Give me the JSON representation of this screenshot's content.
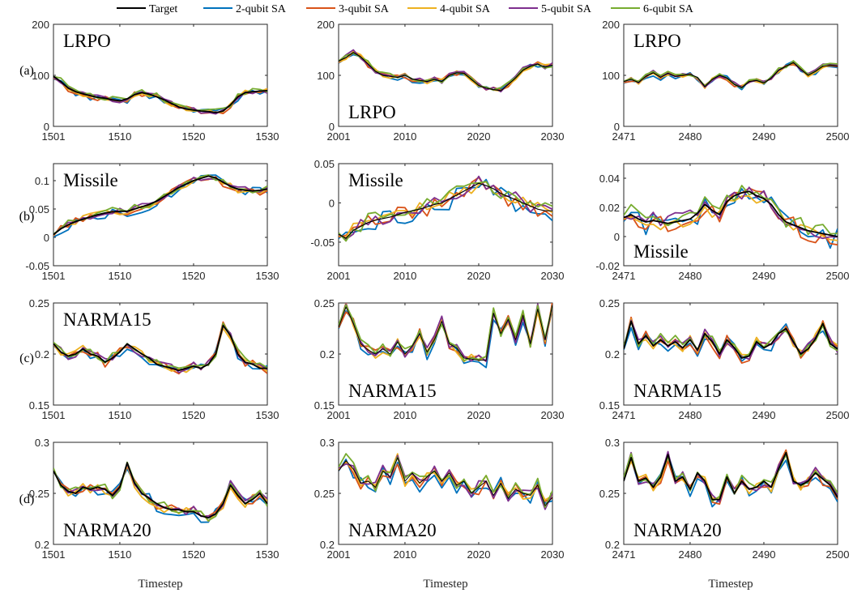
{
  "legend": [
    {
      "label": "Target",
      "color": "#000000"
    },
    {
      "label": "2-qubit SA",
      "color": "#0072BD"
    },
    {
      "label": "3-qubit SA",
      "color": "#D95319"
    },
    {
      "label": "4-qubit SA",
      "color": "#EDB120"
    },
    {
      "label": "5-qubit SA",
      "color": "#7E2F8E"
    },
    {
      "label": "6-qubit SA",
      "color": "#77AC30"
    }
  ],
  "row_labels": [
    "(a)",
    "(b)",
    "(c)",
    "(d)"
  ],
  "xlabel": "Timestep",
  "chart_data": [
    {
      "type": "line",
      "row": 0,
      "col": 0,
      "label": "LRPO",
      "label_pos": "top",
      "x_start": 1501,
      "xlim": [
        1501,
        1530
      ],
      "xticks": [
        1501,
        1510,
        1520,
        1530
      ],
      "ylim": [
        0,
        200
      ],
      "yticks": [
        0,
        100,
        200
      ],
      "ytick_labels": [
        "0",
        "100",
        "200"
      ],
      "target_lw": 1.8,
      "target": [
        98,
        88,
        75,
        68,
        64,
        60,
        57,
        55,
        52,
        50,
        54,
        62,
        66,
        63,
        58,
        52,
        45,
        38,
        34,
        32,
        30,
        29,
        27,
        30,
        42,
        58,
        66,
        68,
        69,
        70
      ],
      "noise": 7
    },
    {
      "type": "line",
      "row": 0,
      "col": 1,
      "label": "LRPO",
      "label_pos": "bottom",
      "x_start": 2001,
      "xlim": [
        2001,
        2030
      ],
      "xticks": [
        2001,
        2010,
        2020,
        2030
      ],
      "ylim": [
        0,
        200
      ],
      "yticks": [
        0,
        100,
        200
      ],
      "ytick_labels": [
        "0",
        "100",
        "200"
      ],
      "target_lw": 1.2,
      "target": [
        128,
        135,
        145,
        136,
        122,
        108,
        100,
        98,
        96,
        100,
        93,
        90,
        88,
        92,
        88,
        100,
        105,
        104,
        92,
        80,
        75,
        72,
        70,
        82,
        95,
        110,
        118,
        122,
        116,
        120
      ],
      "noise": 6
    },
    {
      "type": "line",
      "row": 0,
      "col": 2,
      "label": "LRPO",
      "label_pos": "top",
      "x_start": 2471,
      "xlim": [
        2471,
        2500
      ],
      "xticks": [
        2471,
        2480,
        2490,
        2500
      ],
      "ylim": [
        0,
        200
      ],
      "yticks": [
        0,
        100,
        200
      ],
      "ytick_labels": [
        "0",
        "100",
        "200"
      ],
      "target_lw": 1.2,
      "target": [
        88,
        92,
        86,
        98,
        105,
        96,
        104,
        98,
        100,
        102,
        96,
        78,
        92,
        100,
        95,
        82,
        76,
        88,
        90,
        85,
        95,
        110,
        118,
        125,
        112,
        100,
        108,
        118,
        120,
        118
      ],
      "noise": 5
    },
    {
      "type": "line",
      "row": 1,
      "col": 0,
      "label": "Missile",
      "label_pos": "top",
      "x_start": 1501,
      "xlim": [
        1501,
        1530
      ],
      "xticks": [
        1501,
        1510,
        1520,
        1530
      ],
      "ylim": [
        -0.05,
        0.13
      ],
      "yticks": [
        -0.05,
        0,
        0.05,
        0.1
      ],
      "ytick_labels": [
        "-0.05",
        "0",
        "0.05",
        "0.1"
      ],
      "target_lw": 1.8,
      "target": [
        0.005,
        0.015,
        0.022,
        0.028,
        0.032,
        0.036,
        0.04,
        0.043,
        0.045,
        0.046,
        0.046,
        0.05,
        0.054,
        0.058,
        0.064,
        0.072,
        0.08,
        0.088,
        0.094,
        0.1,
        0.104,
        0.108,
        0.105,
        0.097,
        0.09,
        0.085,
        0.083,
        0.082,
        0.083,
        0.085
      ],
      "noise": 0.008
    },
    {
      "type": "line",
      "row": 1,
      "col": 1,
      "label": "Missile",
      "label_pos": "top",
      "x_start": 2001,
      "xlim": [
        2001,
        2030
      ],
      "xticks": [
        2001,
        2010,
        2020,
        2030
      ],
      "ylim": [
        -0.08,
        0.05
      ],
      "yticks": [
        -0.05,
        0,
        0.05
      ],
      "ytick_labels": [
        "-0.05",
        "0",
        "0.05"
      ],
      "target_lw": 1.2,
      "target": [
        -0.04,
        -0.045,
        -0.035,
        -0.03,
        -0.025,
        -0.022,
        -0.02,
        -0.018,
        -0.015,
        -0.012,
        -0.01,
        -0.008,
        -0.005,
        -0.002,
        0.0,
        0.005,
        0.01,
        0.015,
        0.02,
        0.025,
        0.022,
        0.018,
        0.012,
        0.008,
        0.004,
        0.0,
        -0.004,
        -0.008,
        -0.01,
        -0.01
      ],
      "noise": 0.012
    },
    {
      "type": "line",
      "row": 1,
      "col": 2,
      "label": "Missile",
      "label_pos": "bottom",
      "x_start": 2471,
      "xlim": [
        2471,
        2500
      ],
      "xticks": [
        2471,
        2480,
        2490,
        2500
      ],
      "ylim": [
        -0.02,
        0.05
      ],
      "yticks": [
        -0.02,
        0,
        0.02,
        0.04
      ],
      "ytick_labels": [
        "-0.02",
        "0",
        "0.02",
        "0.04"
      ],
      "target_lw": 1.8,
      "target": [
        0.013,
        0.015,
        0.012,
        0.01,
        0.011,
        0.01,
        0.009,
        0.01,
        0.011,
        0.012,
        0.016,
        0.022,
        0.018,
        0.015,
        0.024,
        0.028,
        0.03,
        0.031,
        0.028,
        0.026,
        0.022,
        0.015,
        0.01,
        0.008,
        0.006,
        0.004,
        0.003,
        0.002,
        0.001,
        0.0
      ],
      "noise": 0.007
    },
    {
      "type": "line",
      "row": 2,
      "col": 0,
      "label": "NARMA15",
      "label_pos": "top",
      "x_start": 1501,
      "xlim": [
        1501,
        1530
      ],
      "xticks": [
        1501,
        1510,
        1520,
        1530
      ],
      "ylim": [
        0.15,
        0.25
      ],
      "yticks": [
        0.15,
        0.2,
        0.25
      ],
      "ytick_labels": [
        "0.15",
        "0.2",
        "0.25"
      ],
      "target_lw": 1.8,
      "target": [
        0.21,
        0.202,
        0.198,
        0.2,
        0.205,
        0.2,
        0.198,
        0.192,
        0.196,
        0.202,
        0.21,
        0.205,
        0.2,
        0.196,
        0.19,
        0.188,
        0.186,
        0.184,
        0.186,
        0.188,
        0.186,
        0.19,
        0.2,
        0.228,
        0.218,
        0.2,
        0.192,
        0.19,
        0.186,
        0.186
      ],
      "noise": 0.005
    },
    {
      "type": "line",
      "row": 2,
      "col": 1,
      "label": "NARMA15",
      "label_pos": "bottom",
      "x_start": 2001,
      "xlim": [
        2001,
        2030
      ],
      "xticks": [
        2001,
        2010,
        2020,
        2030
      ],
      "ylim": [
        0.15,
        0.25
      ],
      "yticks": [
        0.15,
        0.2,
        0.25
      ],
      "ytick_labels": [
        "0.15",
        "0.2",
        "0.25"
      ],
      "target_lw": 1.0,
      "target": [
        0.226,
        0.246,
        0.23,
        0.21,
        0.204,
        0.2,
        0.205,
        0.2,
        0.212,
        0.2,
        0.208,
        0.22,
        0.202,
        0.214,
        0.232,
        0.21,
        0.206,
        0.196,
        0.195,
        0.194,
        0.194,
        0.24,
        0.22,
        0.234,
        0.214,
        0.238,
        0.21,
        0.244,
        0.214,
        0.248
      ],
      "noise": 0.006
    },
    {
      "type": "line",
      "row": 2,
      "col": 2,
      "label": "NARMA15",
      "label_pos": "bottom",
      "x_start": 2471,
      "xlim": [
        2471,
        2500
      ],
      "xticks": [
        2471,
        2480,
        2490,
        2500
      ],
      "ylim": [
        0.15,
        0.25
      ],
      "yticks": [
        0.15,
        0.2,
        0.25
      ],
      "ytick_labels": [
        "0.15",
        "0.2",
        "0.25"
      ],
      "target_lw": 1.8,
      "target": [
        0.205,
        0.232,
        0.21,
        0.218,
        0.208,
        0.214,
        0.208,
        0.212,
        0.206,
        0.214,
        0.204,
        0.22,
        0.212,
        0.2,
        0.214,
        0.206,
        0.196,
        0.198,
        0.212,
        0.206,
        0.21,
        0.22,
        0.225,
        0.212,
        0.2,
        0.205,
        0.215,
        0.23,
        0.21,
        0.205
      ],
      "noise": 0.006
    },
    {
      "type": "line",
      "row": 3,
      "col": 0,
      "label": "NARMA20",
      "label_pos": "bottom",
      "x_start": 1501,
      "xlim": [
        1501,
        1530
      ],
      "xticks": [
        1501,
        1510,
        1520,
        1530
      ],
      "ylim": [
        0.2,
        0.3
      ],
      "yticks": [
        0.2,
        0.25,
        0.3
      ],
      "ytick_labels": [
        "0.2",
        "0.25",
        "0.3"
      ],
      "target_lw": 1.8,
      "target": [
        0.272,
        0.258,
        0.252,
        0.25,
        0.256,
        0.254,
        0.256,
        0.254,
        0.248,
        0.256,
        0.28,
        0.26,
        0.25,
        0.245,
        0.24,
        0.236,
        0.234,
        0.234,
        0.232,
        0.232,
        0.228,
        0.226,
        0.23,
        0.24,
        0.258,
        0.248,
        0.24,
        0.244,
        0.25,
        0.24
      ],
      "noise": 0.006
    },
    {
      "type": "line",
      "row": 3,
      "col": 1,
      "label": "NARMA20",
      "label_pos": "bottom",
      "x_start": 2001,
      "xlim": [
        2001,
        2030
      ],
      "xticks": [
        2001,
        2010,
        2020,
        2030
      ],
      "ylim": [
        0.2,
        0.3
      ],
      "yticks": [
        0.2,
        0.25,
        0.3
      ],
      "ytick_labels": [
        "0.2",
        "0.25",
        "0.3"
      ],
      "target_lw": 1.0,
      "target": [
        0.272,
        0.282,
        0.274,
        0.26,
        0.262,
        0.256,
        0.272,
        0.266,
        0.285,
        0.262,
        0.27,
        0.26,
        0.266,
        0.272,
        0.262,
        0.27,
        0.258,
        0.262,
        0.25,
        0.256,
        0.262,
        0.248,
        0.26,
        0.245,
        0.254,
        0.25,
        0.248,
        0.258,
        0.238,
        0.246
      ],
      "noise": 0.007
    },
    {
      "type": "line",
      "row": 3,
      "col": 2,
      "label": "NARMA20",
      "label_pos": "bottom",
      "x_start": 2471,
      "xlim": [
        2471,
        2500
      ],
      "xticks": [
        2471,
        2480,
        2490,
        2500
      ],
      "ylim": [
        0.2,
        0.3
      ],
      "yticks": [
        0.2,
        0.25,
        0.3
      ],
      "ytick_labels": [
        "0.2",
        "0.25",
        "0.3"
      ],
      "target_lw": 1.8,
      "target": [
        0.262,
        0.285,
        0.262,
        0.265,
        0.256,
        0.266,
        0.288,
        0.262,
        0.266,
        0.254,
        0.27,
        0.262,
        0.244,
        0.244,
        0.266,
        0.25,
        0.262,
        0.254,
        0.256,
        0.262,
        0.256,
        0.274,
        0.29,
        0.262,
        0.258,
        0.262,
        0.27,
        0.264,
        0.258,
        0.246
      ],
      "noise": 0.006
    }
  ]
}
